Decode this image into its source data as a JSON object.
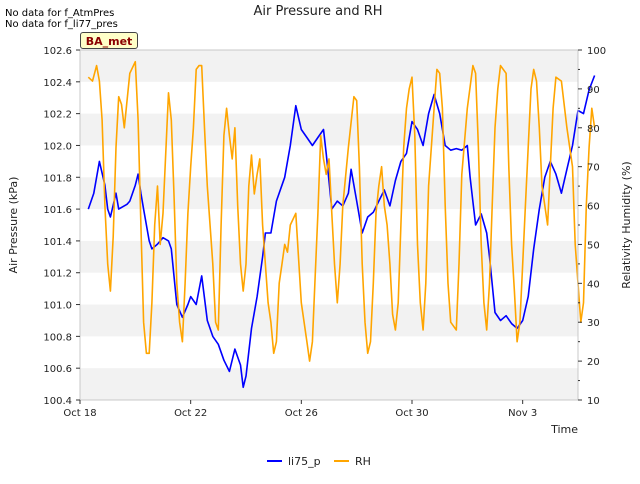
{
  "notes": [
    "No data for f_AtmPres",
    "No data for f_li77_pres"
  ],
  "badge": "BA_met",
  "chart_data": {
    "type": "line",
    "title": "Air Pressure and RH",
    "xlabel": "Time",
    "ylabel_left": "Air Pressure (kPa)",
    "ylabel_right": "Relativity Humidity (%)",
    "x_ticks": [
      "Oct 18",
      "Oct 22",
      "Oct 26",
      "Oct 30",
      "Nov 3"
    ],
    "x_tick_days": [
      0,
      4,
      8,
      12,
      16
    ],
    "xlim_days": [
      0,
      18
    ],
    "ylim_left": [
      100.4,
      102.6
    ],
    "yticks_left": [
      "100.4",
      "100.6",
      "100.8",
      "101.0",
      "101.2",
      "101.4",
      "101.6",
      "101.8",
      "102.0",
      "102.2",
      "102.4",
      "102.6"
    ],
    "ylim_right": [
      10,
      100
    ],
    "yticks_right": [
      "10",
      "20",
      "30",
      "40",
      "50",
      "60",
      "70",
      "80",
      "90",
      "100"
    ],
    "grid": "horizontal bands",
    "legend_placement": "bottom-center",
    "series": [
      {
        "name": "li75_p",
        "color": "#0000ff",
        "axis": "left",
        "points": [
          [
            0.3,
            101.6
          ],
          [
            0.5,
            101.7
          ],
          [
            0.7,
            101.9
          ],
          [
            0.9,
            101.75
          ],
          [
            1.0,
            101.6
          ],
          [
            1.1,
            101.55
          ],
          [
            1.3,
            101.7
          ],
          [
            1.4,
            101.6
          ],
          [
            1.7,
            101.63
          ],
          [
            1.8,
            101.65
          ],
          [
            2.0,
            101.75
          ],
          [
            2.1,
            101.82
          ],
          [
            2.2,
            101.7
          ],
          [
            2.3,
            101.6
          ],
          [
            2.5,
            101.4
          ],
          [
            2.6,
            101.35
          ],
          [
            2.8,
            101.38
          ],
          [
            3.0,
            101.42
          ],
          [
            3.2,
            101.4
          ],
          [
            3.3,
            101.35
          ],
          [
            3.5,
            101.0
          ],
          [
            3.7,
            100.92
          ],
          [
            3.9,
            101.0
          ],
          [
            4.0,
            101.05
          ],
          [
            4.2,
            101.0
          ],
          [
            4.4,
            101.18
          ],
          [
            4.6,
            100.9
          ],
          [
            4.8,
            100.8
          ],
          [
            5.0,
            100.75
          ],
          [
            5.2,
            100.65
          ],
          [
            5.4,
            100.58
          ],
          [
            5.6,
            100.72
          ],
          [
            5.8,
            100.62
          ],
          [
            5.9,
            100.48
          ],
          [
            6.0,
            100.55
          ],
          [
            6.2,
            100.85
          ],
          [
            6.4,
            101.05
          ],
          [
            6.6,
            101.3
          ],
          [
            6.7,
            101.45
          ],
          [
            6.9,
            101.45
          ],
          [
            7.1,
            101.65
          ],
          [
            7.4,
            101.8
          ],
          [
            7.6,
            102.0
          ],
          [
            7.8,
            102.25
          ],
          [
            8.0,
            102.1
          ],
          [
            8.2,
            102.05
          ],
          [
            8.4,
            102.0
          ],
          [
            8.6,
            102.05
          ],
          [
            8.8,
            102.1
          ],
          [
            8.9,
            101.95
          ],
          [
            9.1,
            101.6
          ],
          [
            9.3,
            101.65
          ],
          [
            9.5,
            101.62
          ],
          [
            9.7,
            101.7
          ],
          [
            9.8,
            101.85
          ],
          [
            10.0,
            101.65
          ],
          [
            10.2,
            101.45
          ],
          [
            10.4,
            101.55
          ],
          [
            10.6,
            101.58
          ],
          [
            10.8,
            101.65
          ],
          [
            11.0,
            101.72
          ],
          [
            11.2,
            101.62
          ],
          [
            11.4,
            101.78
          ],
          [
            11.6,
            101.9
          ],
          [
            11.8,
            101.95
          ],
          [
            12.0,
            102.15
          ],
          [
            12.2,
            102.1
          ],
          [
            12.4,
            102.0
          ],
          [
            12.6,
            102.2
          ],
          [
            12.8,
            102.32
          ],
          [
            13.0,
            102.2
          ],
          [
            13.2,
            102.0
          ],
          [
            13.4,
            101.97
          ],
          [
            13.6,
            101.98
          ],
          [
            13.8,
            101.97
          ],
          [
            14.0,
            102.0
          ],
          [
            14.1,
            101.8
          ],
          [
            14.3,
            101.5
          ],
          [
            14.5,
            101.57
          ],
          [
            14.7,
            101.45
          ],
          [
            14.8,
            101.3
          ],
          [
            15.0,
            100.95
          ],
          [
            15.2,
            100.9
          ],
          [
            15.4,
            100.93
          ],
          [
            15.6,
            100.88
          ],
          [
            15.8,
            100.85
          ],
          [
            16.0,
            100.9
          ],
          [
            16.2,
            101.05
          ],
          [
            16.4,
            101.35
          ],
          [
            16.6,
            101.6
          ],
          [
            16.8,
            101.8
          ],
          [
            17.0,
            101.9
          ],
          [
            17.2,
            101.82
          ],
          [
            17.4,
            101.7
          ],
          [
            17.6,
            101.85
          ],
          [
            17.8,
            102.0
          ],
          [
            18.0,
            102.22
          ],
          [
            18.2,
            102.2
          ],
          [
            18.4,
            102.35
          ],
          [
            18.6,
            102.44
          ]
        ]
      },
      {
        "name": "RH",
        "color": "#ffa500",
        "axis": "right",
        "points": [
          [
            0.3,
            93
          ],
          [
            0.45,
            92
          ],
          [
            0.6,
            96
          ],
          [
            0.7,
            92
          ],
          [
            0.8,
            82
          ],
          [
            0.9,
            60
          ],
          [
            1.0,
            45
          ],
          [
            1.1,
            38
          ],
          [
            1.2,
            52
          ],
          [
            1.3,
            75
          ],
          [
            1.4,
            88
          ],
          [
            1.5,
            86
          ],
          [
            1.6,
            80
          ],
          [
            1.8,
            94
          ],
          [
            2.0,
            97
          ],
          [
            2.1,
            82
          ],
          [
            2.2,
            55
          ],
          [
            2.3,
            30
          ],
          [
            2.4,
            22
          ],
          [
            2.5,
            22
          ],
          [
            2.6,
            35
          ],
          [
            2.7,
            55
          ],
          [
            2.8,
            65
          ],
          [
            2.9,
            50
          ],
          [
            3.0,
            58
          ],
          [
            3.2,
            89
          ],
          [
            3.3,
            82
          ],
          [
            3.4,
            62
          ],
          [
            3.5,
            40
          ],
          [
            3.6,
            30
          ],
          [
            3.7,
            25
          ],
          [
            3.8,
            40
          ],
          [
            3.9,
            58
          ],
          [
            4.0,
            70
          ],
          [
            4.1,
            80
          ],
          [
            4.2,
            95
          ],
          [
            4.3,
            96
          ],
          [
            4.4,
            96
          ],
          [
            4.5,
            80
          ],
          [
            4.6,
            65
          ],
          [
            4.8,
            45
          ],
          [
            4.9,
            30
          ],
          [
            5.0,
            28
          ],
          [
            5.1,
            55
          ],
          [
            5.2,
            78
          ],
          [
            5.3,
            85
          ],
          [
            5.4,
            78
          ],
          [
            5.5,
            72
          ],
          [
            5.6,
            80
          ],
          [
            5.7,
            60
          ],
          [
            5.8,
            45
          ],
          [
            5.9,
            38
          ],
          [
            6.0,
            45
          ],
          [
            6.1,
            65
          ],
          [
            6.2,
            73
          ],
          [
            6.3,
            63
          ],
          [
            6.4,
            68
          ],
          [
            6.5,
            72
          ],
          [
            6.6,
            55
          ],
          [
            6.8,
            35
          ],
          [
            6.9,
            30
          ],
          [
            7.0,
            22
          ],
          [
            7.1,
            25
          ],
          [
            7.2,
            40
          ],
          [
            7.3,
            45
          ],
          [
            7.4,
            50
          ],
          [
            7.5,
            48
          ],
          [
            7.6,
            55
          ],
          [
            7.8,
            58
          ],
          [
            8.0,
            35
          ],
          [
            8.1,
            30
          ],
          [
            8.2,
            25
          ],
          [
            8.3,
            20
          ],
          [
            8.4,
            25
          ],
          [
            8.5,
            42
          ],
          [
            8.6,
            58
          ],
          [
            8.7,
            78
          ],
          [
            8.8,
            72
          ],
          [
            8.9,
            68
          ],
          [
            9.0,
            72
          ],
          [
            9.1,
            58
          ],
          [
            9.2,
            45
          ],
          [
            9.3,
            35
          ],
          [
            9.4,
            45
          ],
          [
            9.5,
            60
          ],
          [
            9.7,
            75
          ],
          [
            9.9,
            88
          ],
          [
            10.0,
            87
          ],
          [
            10.1,
            70
          ],
          [
            10.2,
            45
          ],
          [
            10.3,
            30
          ],
          [
            10.4,
            22
          ],
          [
            10.5,
            25
          ],
          [
            10.6,
            40
          ],
          [
            10.7,
            58
          ],
          [
            10.8,
            65
          ],
          [
            10.9,
            70
          ],
          [
            11.0,
            60
          ],
          [
            11.1,
            55
          ],
          [
            11.2,
            45
          ],
          [
            11.3,
            32
          ],
          [
            11.4,
            28
          ],
          [
            11.5,
            35
          ],
          [
            11.6,
            55
          ],
          [
            11.7,
            75
          ],
          [
            11.8,
            85
          ],
          [
            11.9,
            90
          ],
          [
            12.0,
            93
          ],
          [
            12.1,
            78
          ],
          [
            12.2,
            50
          ],
          [
            12.3,
            35
          ],
          [
            12.4,
            28
          ],
          [
            12.5,
            40
          ],
          [
            12.6,
            65
          ],
          [
            12.8,
            85
          ],
          [
            12.9,
            95
          ],
          [
            13.0,
            94
          ],
          [
            13.1,
            85
          ],
          [
            13.2,
            60
          ],
          [
            13.3,
            40
          ],
          [
            13.4,
            30
          ],
          [
            13.6,
            28
          ],
          [
            13.7,
            45
          ],
          [
            13.8,
            68
          ],
          [
            14.0,
            85
          ],
          [
            14.2,
            96
          ],
          [
            14.3,
            94
          ],
          [
            14.4,
            75
          ],
          [
            14.5,
            50
          ],
          [
            14.6,
            35
          ],
          [
            14.7,
            28
          ],
          [
            14.8,
            40
          ],
          [
            14.9,
            60
          ],
          [
            15.0,
            80
          ],
          [
            15.1,
            90
          ],
          [
            15.2,
            96
          ],
          [
            15.4,
            94
          ],
          [
            15.5,
            70
          ],
          [
            15.6,
            50
          ],
          [
            15.7,
            38
          ],
          [
            15.8,
            25
          ],
          [
            15.9,
            30
          ],
          [
            16.0,
            45
          ],
          [
            16.1,
            60
          ],
          [
            16.2,
            75
          ],
          [
            16.3,
            90
          ],
          [
            16.4,
            95
          ],
          [
            16.5,
            92
          ],
          [
            16.6,
            80
          ],
          [
            16.7,
            65
          ],
          [
            16.9,
            55
          ],
          [
            17.0,
            70
          ],
          [
            17.1,
            85
          ],
          [
            17.2,
            93
          ],
          [
            17.4,
            92
          ],
          [
            17.6,
            80
          ],
          [
            17.8,
            70
          ],
          [
            17.9,
            50
          ],
          [
            18.0,
            40
          ],
          [
            18.1,
            30
          ],
          [
            18.2,
            35
          ],
          [
            18.3,
            60
          ],
          [
            18.4,
            75
          ],
          [
            18.5,
            85
          ],
          [
            18.6,
            80
          ]
        ]
      }
    ]
  }
}
